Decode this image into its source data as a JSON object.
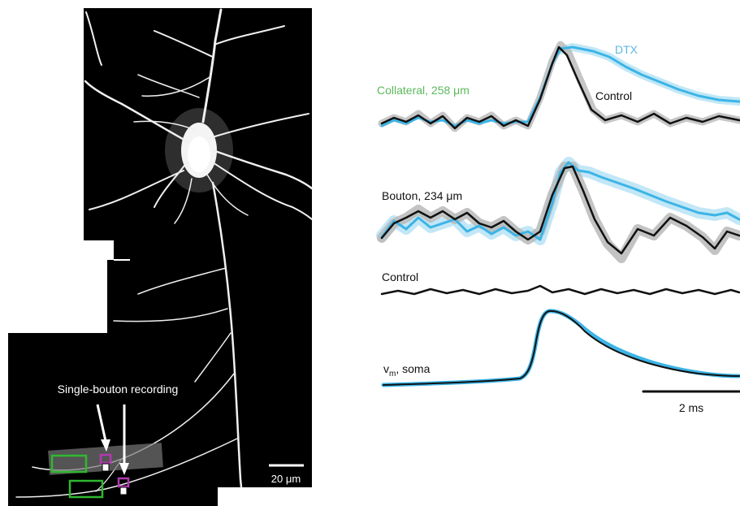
{
  "micrograph": {
    "annotation": "Single-bouton recording",
    "scalebar_label": "20 μm",
    "colors": {
      "background": "#000000",
      "neuron": "#f2f2f2",
      "roi_box": "#2fb82f",
      "pipette_tip": "#b03ab0"
    }
  },
  "traces": {
    "collateral_label": "Collateral, 258 μm",
    "dtx_label": "DTX",
    "control_label_top": "Control",
    "bouton_label": "Bouton, 234 μm",
    "control_label_mid": "Control",
    "vm_main": "v",
    "vm_sub": "m",
    "vm_rest": ", soma",
    "scalebar_label": "2 ms",
    "colors": {
      "control": "#111111",
      "dtx": "#3cb4e6",
      "collateral_label": "#5cb85c",
      "dtx_label": "#5ab8e0",
      "error_band": "#b8b8b8"
    }
  }
}
